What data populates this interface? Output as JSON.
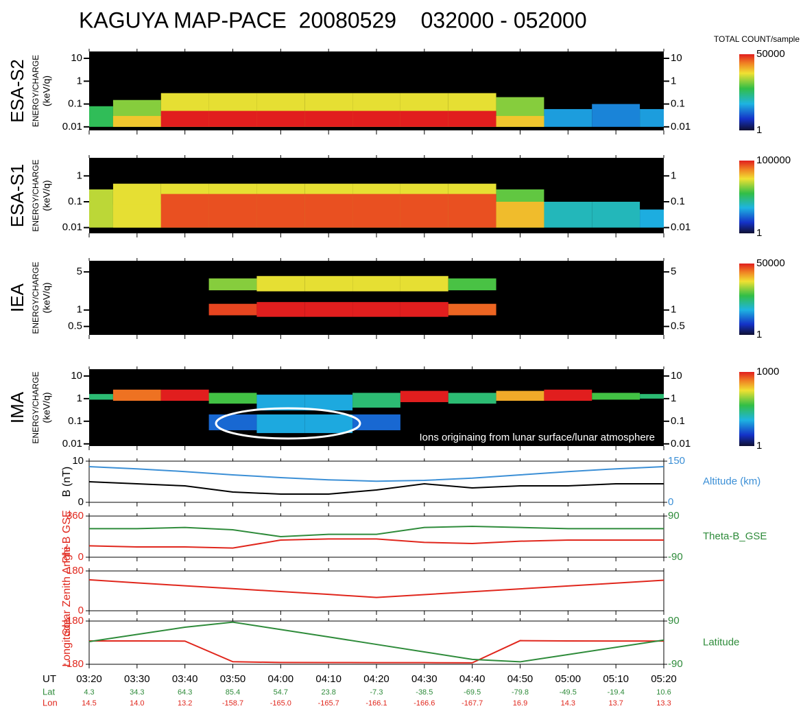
{
  "title": "KAGUYA MAP-PACE  20080529    032000 - 052000",
  "chart_data": [
    {
      "type": "spectrogram",
      "title": "ESA-S2",
      "ylabel": "ENERGY/CHARGE",
      "yunit": "(keV/q)",
      "log": true,
      "ylim": [
        0.007,
        20
      ],
      "yticks": [
        0.01,
        0.1,
        1,
        10
      ],
      "colorbar_label": "TOTAL COUNT/sample",
      "clim": [
        1,
        50000
      ],
      "cticks": [
        1,
        50000
      ],
      "layers": [
        {
          "low": [
            0.01,
            0.01,
            0.01,
            0.01,
            0.01,
            0.01,
            0.01,
            0.01,
            0.01,
            0.01,
            0.01,
            0.01,
            0.01
          ],
          "high": [
            0.08,
            0.15,
            0.3,
            0.3,
            0.3,
            0.3,
            0.3,
            0.3,
            0.3,
            0.2,
            0.06,
            0.1,
            0.06
          ],
          "values": [
            300,
            1000,
            3000,
            3000,
            3000,
            3000,
            3000,
            3000,
            3000,
            1000,
            30,
            20,
            30
          ]
        },
        {
          "low": [
            null,
            0.01,
            0.01,
            0.01,
            0.01,
            0.01,
            0.01,
            0.01,
            0.01,
            0.01,
            null,
            null,
            null
          ],
          "high": [
            null,
            0.03,
            0.05,
            0.05,
            0.05,
            0.05,
            0.05,
            0.05,
            0.05,
            0.03,
            null,
            null,
            null
          ],
          "values": [
            null,
            5000,
            50000,
            50000,
            50000,
            50000,
            50000,
            50000,
            50000,
            5000,
            null,
            null,
            null
          ]
        }
      ]
    },
    {
      "type": "spectrogram",
      "title": "ESA-S1",
      "ylabel": "ENERGY/CHARGE",
      "yunit": "(keV/q)",
      "log": true,
      "ylim": [
        0.006,
        5
      ],
      "yticks": [
        0.01,
        0.1,
        1
      ],
      "clim": [
        1,
        100000
      ],
      "cticks": [
        1,
        100000
      ],
      "layers": [
        {
          "low": [
            0.01,
            0.01,
            0.01,
            0.01,
            0.01,
            0.01,
            0.01,
            0.01,
            0.01,
            0.01,
            0.01,
            0.01,
            0.01
          ],
          "high": [
            0.3,
            0.5,
            0.5,
            0.5,
            0.5,
            0.5,
            0.5,
            0.5,
            0.5,
            0.3,
            0.1,
            0.1,
            0.05
          ],
          "values": [
            3000,
            5000,
            5000,
            5000,
            5000,
            5000,
            5000,
            5000,
            5000,
            1000,
            100,
            100,
            50
          ]
        },
        {
          "low": [
            null,
            0.01,
            0.01,
            0.01,
            0.01,
            0.01,
            0.01,
            0.01,
            0.01,
            0.01,
            null,
            null,
            null
          ],
          "high": [
            null,
            0.08,
            0.2,
            0.2,
            0.2,
            0.2,
            0.2,
            0.2,
            0.2,
            0.1,
            null,
            null,
            null
          ],
          "values": [
            null,
            5000,
            50000,
            50000,
            50000,
            50000,
            50000,
            50000,
            50000,
            10000,
            null,
            null,
            null
          ]
        }
      ]
    },
    {
      "type": "spectrogram",
      "title": "IEA",
      "ylabel": "ENERGY/CHARGE",
      "yunit": "(keV/q)",
      "log": true,
      "ylim": [
        0.35,
        8
      ],
      "yticks": [
        0.5,
        1,
        5
      ],
      "clim": [
        1,
        50000
      ],
      "cticks": [
        1,
        50000
      ],
      "layers": [
        {
          "low": [
            null,
            null,
            null,
            0.8,
            0.75,
            0.75,
            0.75,
            0.75,
            0.8,
            null,
            null,
            null,
            null
          ],
          "high": [
            null,
            null,
            null,
            1.3,
            1.4,
            1.4,
            1.4,
            1.4,
            1.3,
            null,
            null,
            null,
            null
          ],
          "values": [
            null,
            null,
            null,
            30000,
            50000,
            50000,
            50000,
            50000,
            20000,
            null,
            null,
            null,
            null
          ]
        },
        {
          "low": [
            null,
            null,
            null,
            2.3,
            2.2,
            2.2,
            2.2,
            2.2,
            2.3,
            null,
            null,
            null,
            null
          ],
          "high": [
            null,
            null,
            null,
            3.8,
            4.2,
            4.2,
            4.2,
            4.2,
            3.8,
            null,
            null,
            null,
            null
          ],
          "values": [
            null,
            null,
            null,
            1000,
            3000,
            3000,
            3000,
            3000,
            500,
            null,
            null,
            null,
            null
          ]
        }
      ]
    },
    {
      "type": "spectrogram",
      "title": "IMA",
      "ylabel": "ENERGY/CHARGE",
      "yunit": "(keV/q)",
      "log": true,
      "ylim": [
        0.008,
        20
      ],
      "yticks": [
        0.01,
        0.1,
        1,
        10
      ],
      "clim": [
        1,
        1000
      ],
      "cticks": [
        1,
        1000
      ],
      "annotation": "Ions originaing from lunar surface/lunar atmosphere",
      "layers": [
        {
          "low": [
            0.9,
            0.8,
            0.8,
            0.6,
            0.3,
            0.3,
            0.4,
            0.7,
            0.6,
            0.8,
            0.8,
            0.9,
            1
          ],
          "high": [
            1.6,
            2.5,
            2.5,
            1.8,
            1.5,
            1.5,
            1.8,
            2.2,
            1.8,
            2.2,
            2.5,
            1.8,
            1.6
          ],
          "values": [
            30,
            500,
            1000,
            50,
            10,
            10,
            30,
            1000,
            30,
            300,
            1000,
            50,
            30
          ]
        },
        {
          "low": [
            null,
            null,
            null,
            0.04,
            0.03,
            0.03,
            0.04,
            null,
            null,
            null,
            null,
            null,
            null
          ],
          "high": [
            null,
            null,
            null,
            0.2,
            0.2,
            0.2,
            0.2,
            null,
            null,
            null,
            null,
            null,
            null
          ],
          "values": [
            null,
            null,
            null,
            5,
            10,
            10,
            5,
            null,
            null,
            null,
            null,
            null,
            null
          ]
        }
      ]
    },
    {
      "type": "line",
      "ylabel": "B (nT)",
      "ylim": [
        0,
        10
      ],
      "yticks": [
        0,
        10
      ],
      "y2lim": [
        0,
        150
      ],
      "y2ticks": [
        0,
        150
      ],
      "series": [
        {
          "color": "#000000",
          "values": [
            5,
            4.5,
            4,
            2.5,
            2,
            2,
            3,
            4.5,
            3.5,
            4,
            4,
            4.5,
            4.5
          ]
        },
        {
          "name": "Altitude (km)",
          "color": "#3b8fd6",
          "axis": "y2",
          "values": [
            130,
            122,
            112,
            100,
            90,
            82,
            77,
            80,
            88,
            100,
            112,
            122,
            130
          ]
        }
      ]
    },
    {
      "type": "line",
      "ylabel": "Phi-B GSE",
      "ylim": [
        0,
        360
      ],
      "yticks": [
        0,
        360
      ],
      "y2lim": [
        -90,
        90
      ],
      "y2ticks": [
        -90,
        90
      ],
      "series": [
        {
          "color": "#e0261c",
          "values": [
            100,
            90,
            90,
            80,
            150,
            160,
            160,
            130,
            120,
            140,
            150,
            150,
            150
          ]
        },
        {
          "name": "Theta-B_GSE",
          "color": "#2e8b3a",
          "axis": "y2",
          "values": [
            35,
            35,
            40,
            30,
            0,
            10,
            10,
            40,
            45,
            40,
            35,
            35,
            35
          ]
        }
      ]
    },
    {
      "type": "line",
      "ylabel": "Solar Zenith Angle",
      "ylim": [
        0,
        180
      ],
      "yticks": [
        0,
        180
      ],
      "series": [
        {
          "color": "#e0261c",
          "values": [
            140,
            126,
            113,
            100,
            87,
            74,
            60,
            73,
            86,
            99,
            112,
            125,
            138
          ]
        }
      ]
    },
    {
      "type": "line",
      "xlabel": "UT",
      "x": [
        "03:20",
        "03:30",
        "03:40",
        "03:50",
        "04:00",
        "04:10",
        "04:20",
        "04:30",
        "04:40",
        "04:50",
        "05:00",
        "05:10",
        "05:20"
      ],
      "ylim": [
        -180,
        180
      ],
      "yticks": [
        -180,
        180
      ],
      "y2lim": [
        -90,
        90
      ],
      "y2ticks": [
        -90,
        90
      ],
      "series": [
        {
          "name": "Longitude",
          "label": "Lon",
          "color": "#e0261c",
          "values": [
            14.5,
            14,
            13.2,
            -158.7,
            -165,
            -165.7,
            -166.1,
            -166.6,
            -167.7,
            16.9,
            14.3,
            13.7,
            13.3
          ],
          "value_labels": [
            "14.5",
            "14.0",
            "13.2",
            "-158.7",
            "-165.0",
            "-165.7",
            "-166.1",
            "-166.6",
            "-167.7",
            "16.9",
            "14.3",
            "13.7",
            "13.3"
          ]
        },
        {
          "name": "Latitude",
          "label": "Lat",
          "color": "#2e8b3a",
          "axis": "y2",
          "values": [
            4.3,
            34.3,
            64.3,
            85.4,
            54.7,
            23.8,
            -7.3,
            -38.5,
            -69.5,
            -79.8,
            -49.5,
            -19.4,
            10.6
          ]
        }
      ]
    }
  ]
}
